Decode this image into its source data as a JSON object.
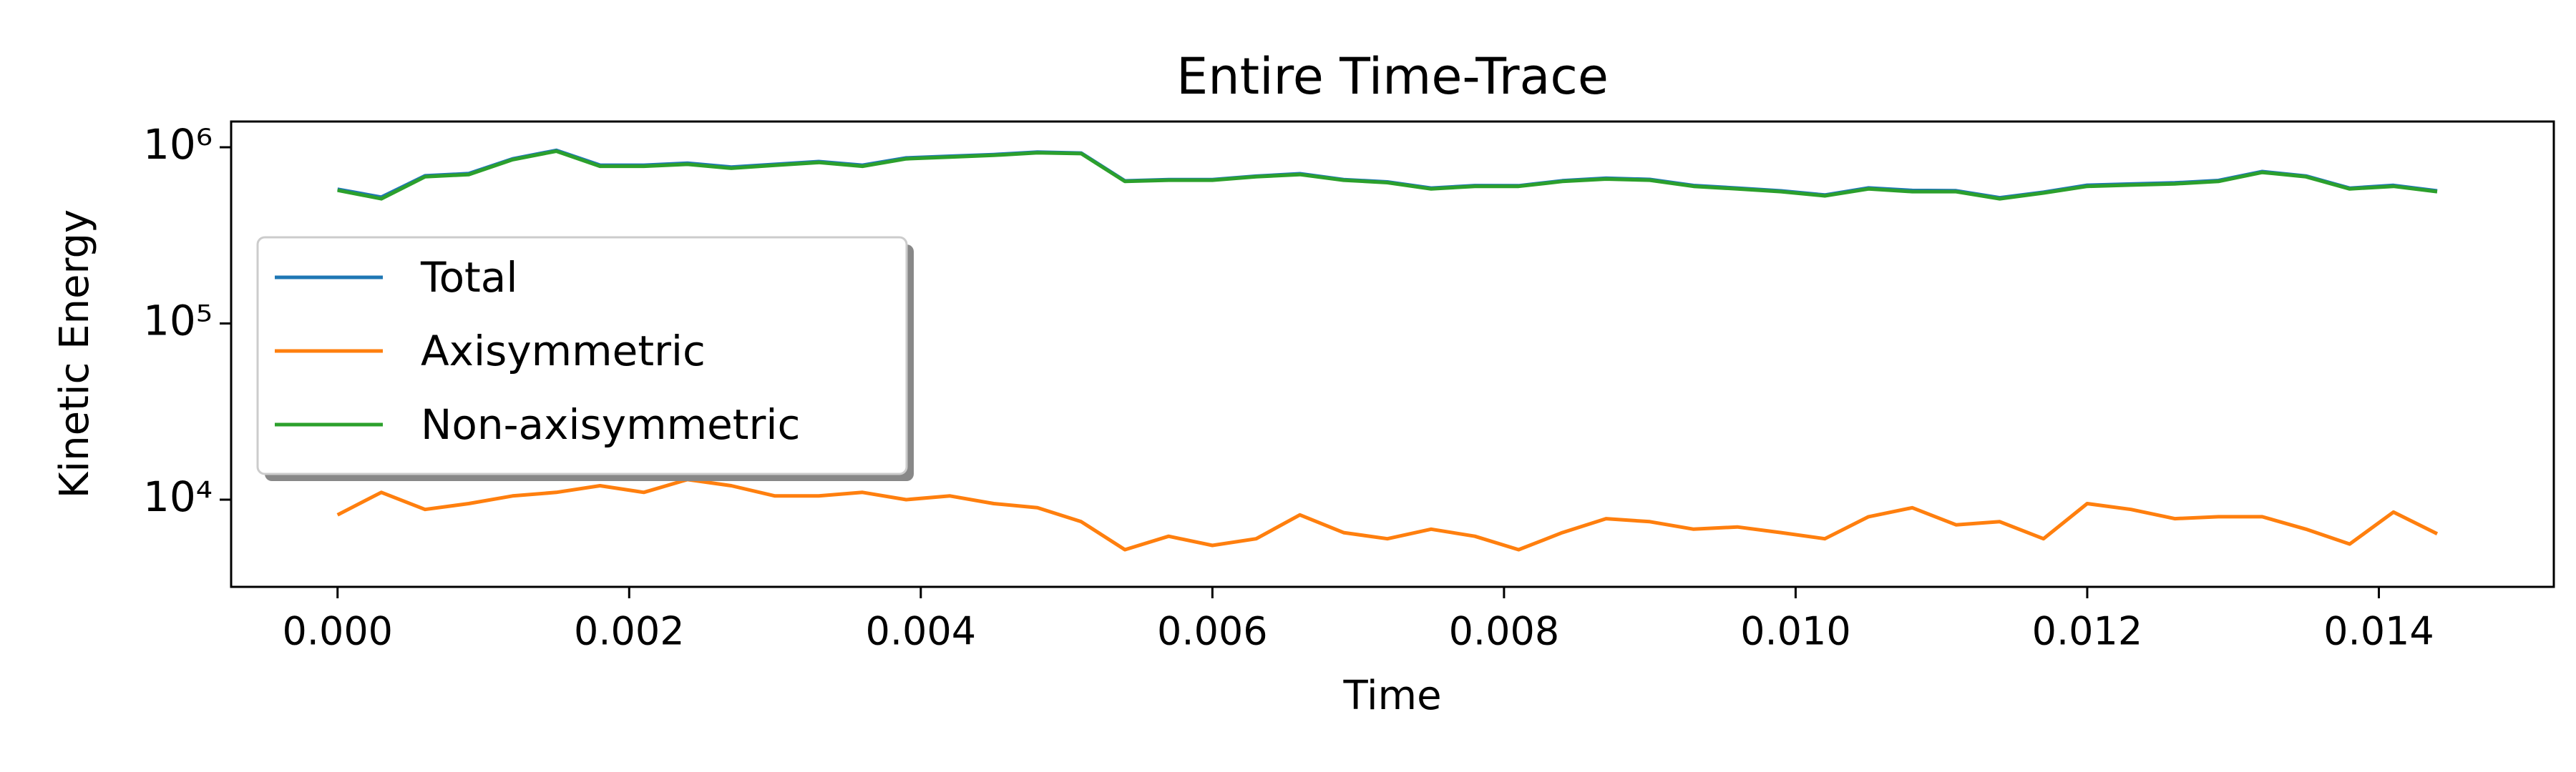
{
  "chart_data": {
    "type": "line",
    "title": "Entire Time-Trace",
    "xlabel": "Time",
    "ylabel": "Kinetic Energy",
    "x": [
      0,
      0.0003,
      0.0006,
      0.0009,
      0.0012,
      0.0015,
      0.0018,
      0.0021,
      0.0024,
      0.0027,
      0.003,
      0.0033,
      0.0036,
      0.0039,
      0.0042,
      0.0045,
      0.0048,
      0.0051,
      0.0054,
      0.0057,
      0.006,
      0.0063,
      0.0066,
      0.0069,
      0.0072,
      0.0075,
      0.0078,
      0.0081,
      0.0084,
      0.0087,
      0.009,
      0.0093,
      0.0096,
      0.0099,
      0.0102,
      0.0105,
      0.0108,
      0.0111,
      0.0114,
      0.0117,
      0.012,
      0.0123,
      0.0126,
      0.0129,
      0.0132,
      0.0135,
      0.0138,
      0.0141,
      0.0144
    ],
    "series": [
      {
        "name": "Total",
        "color": "#1f77b4",
        "values": [
          578000,
          521000,
          689000,
          709000,
          860000,
          961000,
          792000,
          791000,
          813000,
          772000,
          800000,
          830000,
          791000,
          870000,
          890000,
          909000,
          939000,
          927000,
          645000,
          656000,
          655000,
          686000,
          708000,
          656000,
          636000,
          587000,
          606000,
          605000,
          646000,
          668000,
          657000,
          607000,
          587000,
          566000,
          536000,
          588000,
          569000,
          567000,
          517000,
          556000,
          609000,
          619000,
          628000,
          648000,
          728000,
          687000,
          586000,
          608000,
          566000
        ]
      },
      {
        "name": "Axisymmetric",
        "color": "#ff7f0e",
        "values": [
          8200,
          11000,
          8800,
          9500,
          10500,
          11000,
          12000,
          11000,
          13000,
          12000,
          10500,
          10500,
          11000,
          10000,
          10500,
          9500,
          9000,
          7500,
          5200,
          6200,
          5500,
          6000,
          8200,
          6500,
          6000,
          6800,
          6200,
          5200,
          6500,
          7800,
          7500,
          6800,
          7000,
          6500,
          6000,
          8000,
          9000,
          7200,
          7500,
          6000,
          9500,
          8800,
          7800,
          8000,
          8000,
          6800,
          5600,
          8500,
          6400
        ]
      },
      {
        "name": "Non-axisymmetric",
        "color": "#2ca02c",
        "values": [
          570000,
          510000,
          680000,
          700000,
          850000,
          950000,
          780000,
          780000,
          800000,
          760000,
          790000,
          820000,
          780000,
          860000,
          880000,
          900000,
          930000,
          920000,
          640000,
          650000,
          650000,
          680000,
          700000,
          650000,
          630000,
          580000,
          600000,
          600000,
          640000,
          660000,
          650000,
          600000,
          580000,
          560000,
          530000,
          580000,
          560000,
          560000,
          510000,
          550000,
          600000,
          610000,
          620000,
          640000,
          720000,
          680000,
          580000,
          600000,
          560000
        ]
      }
    ],
    "xlim": [
      -0.00073,
      0.0152
    ],
    "xticks": [
      {
        "value": 0,
        "label": "0.000"
      },
      0.002,
      0.004,
      0.006,
      0.008,
      {
        "value": 0.01,
        "label": "0.010"
      },
      0.012,
      0.014
    ],
    "ylim": [
      3200,
      1400000
    ],
    "log_y": true,
    "yticks": [
      {
        "value": 10000,
        "label": "10⁴"
      },
      {
        "value": 100000,
        "label": "10⁵"
      },
      {
        "value": 1000000,
        "label": "10⁶"
      }
    ],
    "legend": "upper left",
    "grid": false
  }
}
